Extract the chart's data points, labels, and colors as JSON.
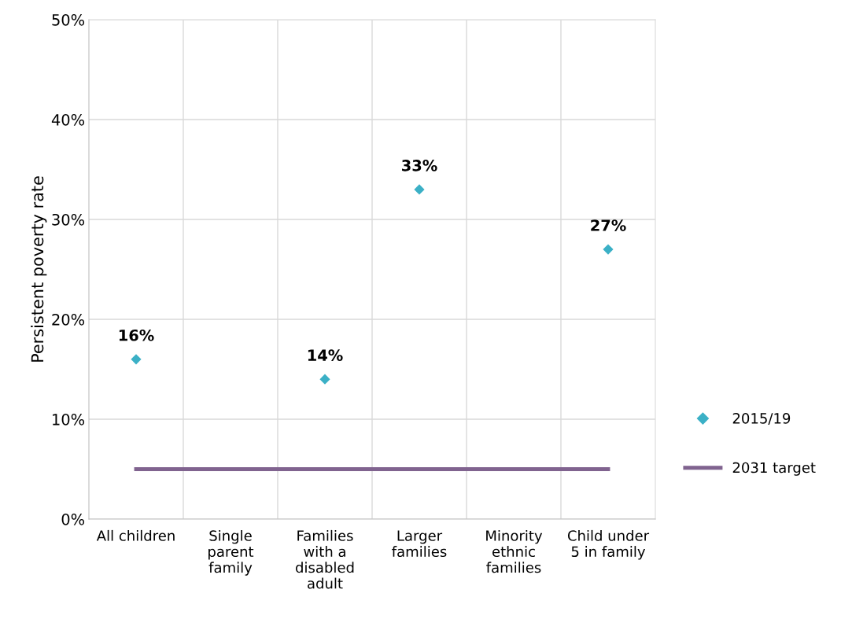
{
  "chart_data": {
    "type": "scatter",
    "ylabel": "Persistent poverty rate",
    "categories": [
      "All children",
      "Single parent family",
      "Families with a disabled adult",
      "Larger families",
      "Minority ethnic families",
      "Child under 5 in family"
    ],
    "series": [
      {
        "name": "2015/19",
        "color": "#3bb0c6",
        "marker": "diamond",
        "values": [
          16,
          null,
          14,
          33,
          null,
          27
        ],
        "value_labels": [
          "16%",
          null,
          "14%",
          "33%",
          null,
          "27%"
        ]
      },
      {
        "name": "2031 target",
        "type": "line",
        "color": "#80638f",
        "marker": "none",
        "line_style": "solid",
        "values": [
          5,
          5,
          5,
          5,
          5,
          5
        ]
      }
    ],
    "ylim": [
      0,
      50
    ],
    "yticks": [
      {
        "value": 0,
        "label": "0%"
      },
      {
        "value": 10,
        "label": "10%"
      },
      {
        "value": 20,
        "label": "20%"
      },
      {
        "value": 30,
        "label": "30%"
      },
      {
        "value": 40,
        "label": "40%"
      },
      {
        "value": 50,
        "label": "50%"
      }
    ],
    "grid": true,
    "legend": "right"
  }
}
